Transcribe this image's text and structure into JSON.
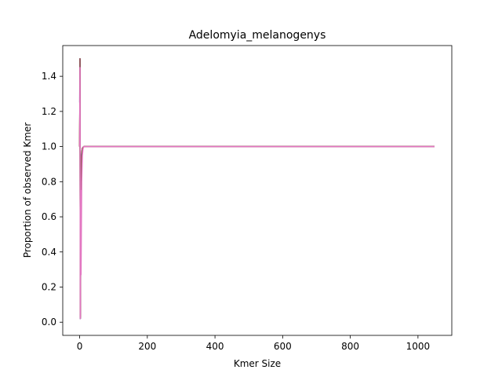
{
  "chart_data": {
    "type": "line",
    "title": "Adelomyia_melanogenys",
    "xlabel": "Kmer Size",
    "ylabel": "Proportion of observed Kmer",
    "xlim": [
      -50,
      1100
    ],
    "ylim": [
      -0.075,
      1.575
    ],
    "xticks": [
      0,
      200,
      400,
      600,
      800,
      1000
    ],
    "yticks": [
      0.0,
      0.2,
      0.4,
      0.6,
      0.8,
      1.0,
      1.2,
      1.4
    ],
    "ytick_labels": [
      "0.0",
      "0.2",
      "0.4",
      "0.6",
      "0.8",
      "1.0",
      "1.2",
      "1.4"
    ],
    "grid": false,
    "legend": "none",
    "series": [
      {
        "color": "#1f77b4",
        "x": [
          0,
          1,
          2,
          3,
          5,
          8,
          12,
          20,
          1049
        ],
        "y": [
          1.0,
          1.5,
          0.02,
          0.6,
          0.95,
          0.99,
          1.0,
          1.0,
          1.0
        ]
      },
      {
        "color": "#ff7f0e",
        "x": [
          0,
          1,
          2,
          3,
          5,
          8,
          12,
          20,
          1049
        ],
        "y": [
          1.0,
          1.45,
          0.03,
          0.55,
          0.9,
          0.98,
          1.0,
          1.0,
          1.0
        ]
      },
      {
        "color": "#2ca02c",
        "x": [
          0,
          1,
          2,
          3,
          5,
          8,
          12,
          20,
          1049
        ],
        "y": [
          1.0,
          1.4,
          0.02,
          0.65,
          0.92,
          0.99,
          1.0,
          1.0,
          1.0
        ]
      },
      {
        "color": "#d62728",
        "x": [
          0,
          1,
          2,
          3,
          5,
          8,
          12,
          20,
          1049
        ],
        "y": [
          1.0,
          1.5,
          0.025,
          0.58,
          0.93,
          0.99,
          1.0,
          1.0,
          1.0
        ]
      },
      {
        "color": "#9467bd",
        "x": [
          0,
          1,
          2,
          3,
          4,
          6,
          8,
          12,
          20,
          1049
        ],
        "y": [
          1.25,
          1.5,
          0.02,
          0.3,
          0.8,
          0.95,
          0.99,
          1.0,
          1.0,
          1.0
        ]
      },
      {
        "color": "#8c564b",
        "x": [
          0,
          1,
          2,
          3,
          4,
          6,
          8,
          12,
          20,
          1049
        ],
        "y": [
          1.0,
          1.5,
          0.03,
          0.35,
          0.85,
          0.97,
          0.99,
          1.0,
          1.0,
          1.0
        ]
      },
      {
        "color": "#e377c2",
        "x": [
          0,
          1,
          2,
          3,
          4,
          6,
          8,
          10,
          12,
          20,
          1049
        ],
        "y": [
          1.0,
          1.45,
          0.02,
          0.75,
          0.27,
          0.8,
          0.95,
          0.99,
          1.0,
          1.0,
          1.0
        ]
      }
    ]
  }
}
